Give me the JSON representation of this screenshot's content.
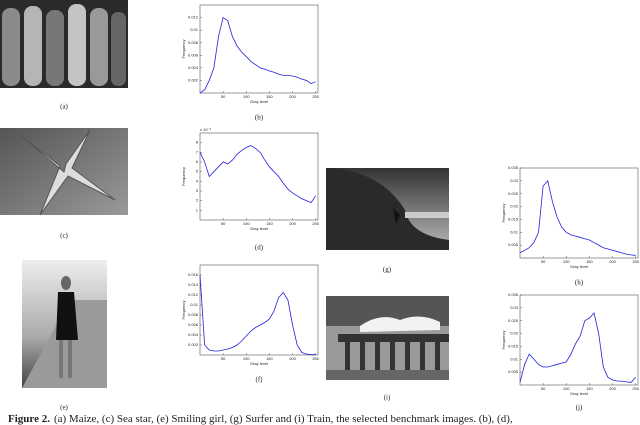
{
  "images": [
    {
      "caption": "(a)"
    },
    {
      "caption": "(c)"
    },
    {
      "caption": "(e)"
    },
    {
      "caption": "(g)"
    },
    {
      "caption": "(i)"
    }
  ],
  "chart_data": [
    {
      "type": "line",
      "caption": "(b)",
      "xlabel": "Gray level",
      "ylabel": "Frequency",
      "color": "#2222dd",
      "x": [
        0,
        10,
        20,
        30,
        40,
        50,
        60,
        70,
        80,
        90,
        100,
        110,
        120,
        130,
        140,
        150,
        160,
        170,
        180,
        190,
        200,
        210,
        220,
        230,
        240,
        250
      ],
      "values": [
        0,
        0.0005,
        0.002,
        0.004,
        0.009,
        0.012,
        0.0115,
        0.009,
        0.0075,
        0.0065,
        0.0058,
        0.005,
        0.0045,
        0.004,
        0.0038,
        0.0035,
        0.0033,
        0.003,
        0.0028,
        0.0028,
        0.0027,
        0.0025,
        0.0022,
        0.002,
        0.0015,
        0.0018
      ],
      "xlim": [
        0,
        255
      ],
      "xticks": [
        50,
        100,
        150,
        200,
        250
      ],
      "ylim": [
        0,
        0.014
      ],
      "yticks": [
        0.002,
        0.004,
        0.006,
        0.008,
        0.01,
        0.012
      ]
    },
    {
      "type": "line",
      "caption": "(d)",
      "xlabel": "Gray level",
      "ylabel": "Frequency",
      "color": "#2222dd",
      "y_multiplier": "x 10⁻³",
      "x": [
        0,
        10,
        20,
        30,
        40,
        50,
        60,
        70,
        80,
        90,
        100,
        110,
        120,
        130,
        140,
        150,
        160,
        170,
        180,
        190,
        200,
        210,
        220,
        230,
        240,
        250
      ],
      "values": [
        0.007,
        0.006,
        0.0045,
        0.005,
        0.0055,
        0.006,
        0.0058,
        0.0062,
        0.0068,
        0.0072,
        0.0075,
        0.0077,
        0.0074,
        0.007,
        0.0062,
        0.0055,
        0.005,
        0.0045,
        0.0038,
        0.0032,
        0.0028,
        0.0025,
        0.0022,
        0.002,
        0.0018,
        0.0025
      ],
      "xlim": [
        0,
        255
      ],
      "xticks": [
        50,
        100,
        150,
        200,
        250
      ],
      "ylim": [
        0,
        0.009
      ],
      "yticks": [
        {
          "value": 0.001,
          "label": "1"
        },
        {
          "value": 0.002,
          "label": "2"
        },
        {
          "value": 0.003,
          "label": "3"
        },
        {
          "value": 0.004,
          "label": "4"
        },
        {
          "value": 0.005,
          "label": "5"
        },
        {
          "value": 0.006,
          "label": "6"
        },
        {
          "value": 0.007,
          "label": "7"
        },
        {
          "value": 0.008,
          "label": "8"
        }
      ]
    },
    {
      "type": "line",
      "caption": "(f)",
      "xlabel": "Gray level",
      "ylabel": "Frequency",
      "color": "#2222dd",
      "x": [
        0,
        10,
        20,
        30,
        40,
        50,
        60,
        70,
        80,
        90,
        100,
        110,
        120,
        130,
        140,
        150,
        160,
        170,
        180,
        190,
        200,
        210,
        220,
        230,
        240,
        250
      ],
      "values": [
        0.016,
        0.002,
        0.001,
        0.0008,
        0.0008,
        0.001,
        0.0012,
        0.0015,
        0.002,
        0.0028,
        0.0038,
        0.0048,
        0.0055,
        0.006,
        0.0065,
        0.0072,
        0.0088,
        0.0115,
        0.0125,
        0.011,
        0.006,
        0.002,
        0.0005,
        0.0002,
        0.0001,
        0.0001
      ],
      "xlim": [
        0,
        255
      ],
      "xticks": [
        50,
        100,
        150,
        200,
        250
      ],
      "ylim": [
        0,
        0.018
      ],
      "yticks": [
        0.002,
        0.004,
        0.006,
        0.008,
        0.01,
        0.012,
        0.014,
        0.016
      ]
    },
    {
      "type": "line",
      "caption": "(h)",
      "xlabel": "Gray level",
      "ylabel": "Frequency",
      "color": "#2222dd",
      "x": [
        0,
        10,
        20,
        30,
        40,
        50,
        60,
        70,
        80,
        90,
        100,
        110,
        120,
        130,
        140,
        150,
        160,
        170,
        180,
        190,
        200,
        210,
        220,
        230,
        240,
        250
      ],
      "values": [
        0.002,
        0.003,
        0.004,
        0.006,
        0.01,
        0.028,
        0.03,
        0.022,
        0.016,
        0.012,
        0.01,
        0.009,
        0.0085,
        0.008,
        0.0075,
        0.007,
        0.006,
        0.005,
        0.004,
        0.0035,
        0.003,
        0.0025,
        0.002,
        0.0015,
        0.0012,
        0.001
      ],
      "xlim": [
        0,
        255
      ],
      "xticks": [
        50,
        100,
        150,
        200,
        250
      ],
      "ylim": [
        0,
        0.035
      ],
      "yticks": [
        0.005,
        0.01,
        0.015,
        0.02,
        0.025,
        0.03,
        0.035
      ]
    },
    {
      "type": "line",
      "caption": "(j)",
      "xlabel": "Gray level",
      "ylabel": "Frequency",
      "color": "#2222dd",
      "x": [
        0,
        10,
        20,
        30,
        40,
        50,
        60,
        70,
        80,
        90,
        100,
        110,
        120,
        130,
        140,
        150,
        160,
        170,
        180,
        190,
        200,
        210,
        220,
        230,
        240,
        250
      ],
      "values": [
        0.001,
        0.008,
        0.012,
        0.01,
        0.008,
        0.007,
        0.007,
        0.0075,
        0.008,
        0.0085,
        0.009,
        0.012,
        0.016,
        0.019,
        0.025,
        0.026,
        0.028,
        0.02,
        0.007,
        0.003,
        0.002,
        0.0015,
        0.0015,
        0.0012,
        0.001,
        0.003
      ],
      "xlim": [
        0,
        255
      ],
      "xticks": [
        50,
        100,
        150,
        200,
        250
      ],
      "ylim": [
        0,
        0.035
      ],
      "yticks": [
        0.005,
        0.01,
        0.015,
        0.02,
        0.025,
        0.03,
        0.035
      ]
    }
  ],
  "figure_caption": {
    "label": "Figure 2.",
    "text": "(a) Maize, (c) Sea star, (e) Smiling girl, (g) Surfer and (i) Train, the selected benchmark images. (b), (d),"
  }
}
